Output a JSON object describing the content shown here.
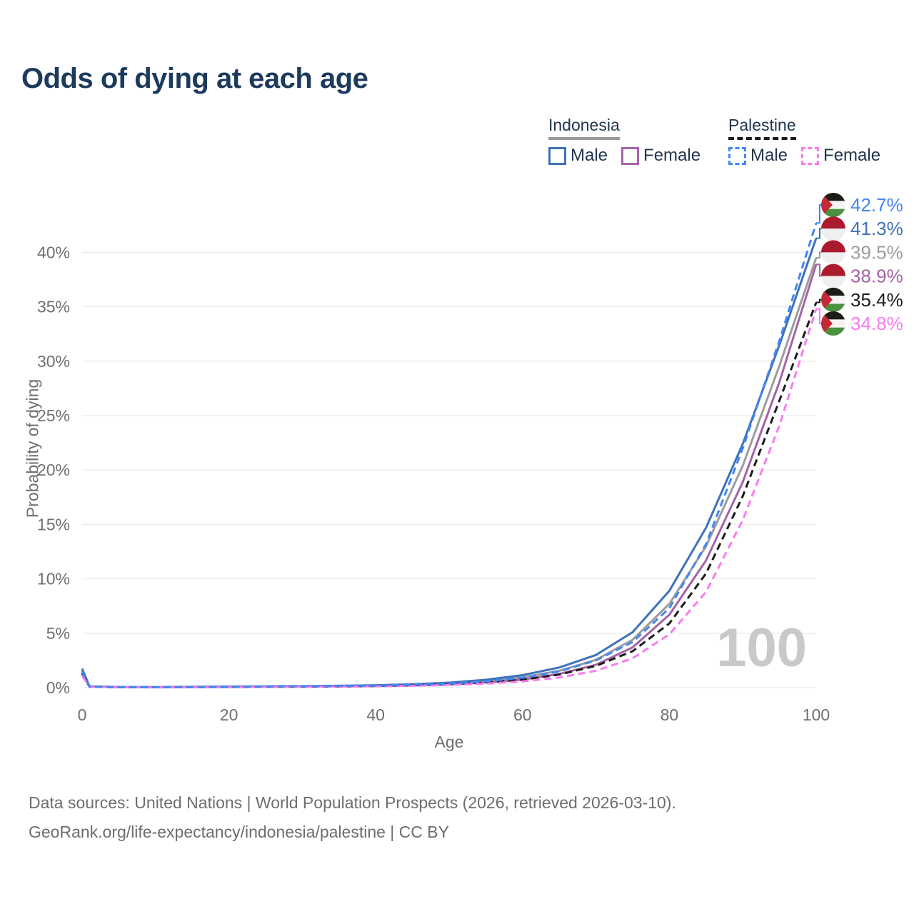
{
  "title": "Odds of dying at each age",
  "legend": {
    "groups": [
      {
        "label": "Indonesia",
        "line_style": "solid",
        "color": "#9a9a9a",
        "items": [
          {
            "label": "Male",
            "color": "#3e72b8",
            "dashed": false
          },
          {
            "label": "Female",
            "color": "#a464a8",
            "dashed": false
          }
        ]
      },
      {
        "label": "Palestine",
        "line_style": "dashed",
        "color": "#1c1c1c",
        "items": [
          {
            "label": "Male",
            "color": "#4286f5",
            "dashed": true
          },
          {
            "label": "Female",
            "color": "#fb7af0",
            "dashed": true
          }
        ]
      }
    ]
  },
  "watermark": "100",
  "footer": {
    "line1": "Data sources: United Nations | World Population Prospects (2026, retrieved 2026-03-10).",
    "line2": "GeoRank.org/life-expectancy/indonesia/palestine | CC BY"
  },
  "chart_data": {
    "type": "line",
    "title": "Odds of dying at each age",
    "xlabel": "Age",
    "ylabel": "Probability of dying",
    "xlim": [
      0,
      100
    ],
    "ylim": [
      0,
      44
    ],
    "grid": "horizontal",
    "xtick_values": [
      0,
      20,
      40,
      60,
      80,
      100
    ],
    "xtick_labels": [
      "0",
      "20",
      "40",
      "60",
      "80",
      "100"
    ],
    "ytick_values": [
      0,
      5,
      10,
      15,
      20,
      25,
      30,
      35,
      40
    ],
    "ytick_labels": [
      "0%",
      "5%",
      "10%",
      "15%",
      "20%",
      "25%",
      "30%",
      "35%",
      "40%"
    ],
    "x": [
      0,
      1,
      5,
      10,
      15,
      20,
      25,
      30,
      35,
      40,
      45,
      50,
      55,
      60,
      65,
      70,
      75,
      80,
      85,
      90,
      95,
      100
    ],
    "series": [
      {
        "id": "indonesia-total",
        "name": "Indonesia",
        "flag": "indonesia",
        "color": "#9c9c9c",
        "dashed": false,
        "end_value": 39.5,
        "end_label": "39.5%",
        "values": [
          1.55,
          0.11,
          0.05,
          0.04,
          0.06,
          0.08,
          0.1,
          0.12,
          0.14,
          0.18,
          0.26,
          0.38,
          0.59,
          0.94,
          1.55,
          2.55,
          4.4,
          7.7,
          13.0,
          20.4,
          29.6,
          39.5
        ]
      },
      {
        "id": "indonesia-female",
        "name": "Indonesia — Female",
        "flag": "indonesia",
        "color": "#a464a8",
        "dashed": false,
        "end_value": 38.9,
        "end_label": "38.9%",
        "values": [
          1.35,
          0.1,
          0.04,
          0.035,
          0.045,
          0.055,
          0.07,
          0.085,
          0.11,
          0.145,
          0.2,
          0.31,
          0.47,
          0.74,
          1.26,
          2.1,
          3.7,
          6.7,
          11.7,
          18.9,
          28.1,
          38.9
        ]
      },
      {
        "id": "indonesia-male",
        "name": "Indonesia — Male",
        "flag": "indonesia",
        "color": "#3e72b8",
        "dashed": false,
        "end_value": 41.3,
        "end_label": "41.3%",
        "values": [
          1.75,
          0.12,
          0.06,
          0.05,
          0.07,
          0.1,
          0.12,
          0.14,
          0.17,
          0.22,
          0.31,
          0.46,
          0.72,
          1.15,
          1.85,
          3.0,
          5.1,
          8.9,
          14.7,
          22.4,
          31.5,
          41.3
        ]
      },
      {
        "id": "palestine-total",
        "name": "Palestine",
        "flag": "palestine",
        "color": "#1c1c1c",
        "dashed": true,
        "end_value": 35.4,
        "end_label": "35.4%",
        "values": [
          1.3,
          0.09,
          0.035,
          0.03,
          0.045,
          0.07,
          0.09,
          0.1,
          0.12,
          0.15,
          0.21,
          0.31,
          0.47,
          0.73,
          1.2,
          2.0,
          3.35,
          5.9,
          10.5,
          17.6,
          26.4,
          35.4
        ]
      },
      {
        "id": "palestine-female",
        "name": "Palestine — Female",
        "flag": "palestine",
        "color": "#fb7af0",
        "dashed": true,
        "end_value": 34.8,
        "end_label": "34.8%",
        "values": [
          1.1,
          0.08,
          0.03,
          0.025,
          0.035,
          0.05,
          0.065,
          0.08,
          0.1,
          0.13,
          0.17,
          0.25,
          0.37,
          0.57,
          0.93,
          1.55,
          2.7,
          4.9,
          8.8,
          15.4,
          24.1,
          34.8
        ]
      },
      {
        "id": "palestine-male",
        "name": "Palestine — Male",
        "flag": "palestine",
        "color": "#4286f5",
        "dashed": true,
        "end_value": 42.7,
        "end_label": "42.7%",
        "values": [
          1.5,
          0.1,
          0.04,
          0.03,
          0.05,
          0.09,
          0.11,
          0.13,
          0.15,
          0.19,
          0.26,
          0.38,
          0.58,
          0.92,
          1.5,
          2.5,
          4.2,
          7.3,
          13.2,
          22.0,
          31.9,
          42.7
        ]
      }
    ]
  }
}
